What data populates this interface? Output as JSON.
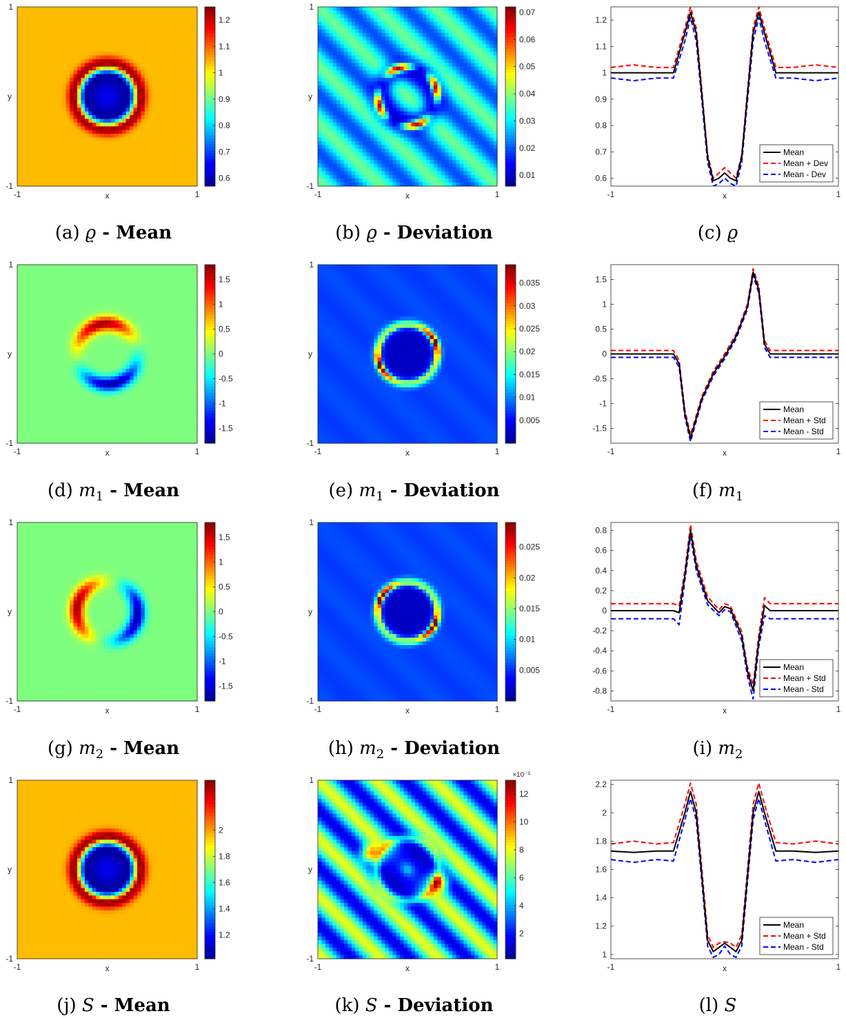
{
  "jet_colormap": [
    "#00008f",
    "#0000ff",
    "#007fff",
    "#00ffff",
    "#7fff7f",
    "#ffff00",
    "#ff7f00",
    "#ff0000",
    "#7f0000"
  ],
  "line_colors": {
    "mean": "#000000",
    "plus": "#ff0000",
    "minus": "#0000ff"
  },
  "chart_data": [
    {
      "id": "a",
      "type": "heatmap",
      "caption": {
        "prefix": "(a) ",
        "var": "ϱ",
        "sub": "",
        "suffix": " - Mean"
      },
      "pattern": "ring",
      "xlabel": "x",
      "ylabel": "y",
      "xlim": [
        -1,
        1
      ],
      "ylim": [
        -1,
        1
      ],
      "xticks": [
        "-1",
        "1"
      ],
      "yticks": [
        "-1",
        "1"
      ],
      "colorbar": {
        "min": 0.57,
        "max": 1.25,
        "ticks": [
          0.6,
          0.7,
          0.8,
          0.9,
          1,
          1.1,
          1.2
        ],
        "tick_labels": [
          "0.6",
          "0.7",
          "0.8",
          "0.9",
          "1",
          "1.1",
          "1.2"
        ],
        "exponent": ""
      }
    },
    {
      "id": "b",
      "type": "heatmap",
      "caption": {
        "prefix": "(b) ",
        "var": "ϱ",
        "sub": "",
        "suffix": " - Deviation"
      },
      "pattern": "stripes_ring",
      "xlabel": "x",
      "ylabel": "y",
      "xlim": [
        -1,
        1
      ],
      "ylim": [
        -1,
        1
      ],
      "xticks": [
        "-1",
        "1"
      ],
      "yticks": [
        "-1",
        "1"
      ],
      "colorbar": {
        "min": 0.006,
        "max": 0.072,
        "ticks": [
          0.01,
          0.02,
          0.03,
          0.04,
          0.05,
          0.06,
          0.07
        ],
        "tick_labels": [
          "0.01",
          "0.02",
          "0.03",
          "0.04",
          "0.05",
          "0.06",
          "0.07"
        ],
        "exponent": ""
      }
    },
    {
      "id": "c",
      "type": "line",
      "caption": {
        "prefix": "(c) ",
        "var": "ϱ",
        "sub": "",
        "suffix": ""
      },
      "xlabel": "x",
      "xlim": [
        -1,
        1
      ],
      "ylim": [
        0.57,
        1.25
      ],
      "xticks": [
        "-1",
        "1"
      ],
      "yticks": [
        0.6,
        0.7,
        0.8,
        0.9,
        1,
        1.1,
        1.2
      ],
      "ytick_labels": [
        "0.6",
        "0.7",
        "0.8",
        "0.9",
        "1",
        "1.1",
        "1.2"
      ],
      "legend_position": "bottom-right",
      "series": [
        {
          "name": "Mean",
          "x": [
            -1,
            -0.6,
            -0.45,
            -0.35,
            -0.3,
            -0.25,
            -0.15,
            -0.1,
            -0.05,
            0,
            0.05,
            0.1,
            0.15,
            0.25,
            0.3,
            0.35,
            0.45,
            0.6,
            1
          ],
          "y": [
            1,
            1,
            1,
            1.15,
            1.23,
            1.15,
            0.68,
            0.59,
            0.6,
            0.62,
            0.6,
            0.59,
            0.68,
            1.15,
            1.23,
            1.15,
            1,
            1,
            1
          ]
        },
        {
          "name": "Mean + Dev",
          "x": [
            -1,
            -0.8,
            -0.6,
            -0.45,
            -0.35,
            -0.3,
            -0.25,
            -0.15,
            -0.1,
            -0.05,
            0,
            0.05,
            0.1,
            0.15,
            0.25,
            0.3,
            0.35,
            0.45,
            0.6,
            0.8,
            1
          ],
          "y": [
            1.02,
            1.03,
            1.02,
            1.02,
            1.17,
            1.25,
            1.17,
            0.69,
            0.6,
            0.62,
            0.64,
            0.62,
            0.6,
            0.69,
            1.17,
            1.25,
            1.17,
            1.02,
            1.02,
            1.03,
            1.02
          ]
        },
        {
          "name": "Mean - Dev",
          "x": [
            -1,
            -0.8,
            -0.6,
            -0.45,
            -0.35,
            -0.3,
            -0.25,
            -0.15,
            -0.1,
            -0.05,
            0,
            0.05,
            0.1,
            0.15,
            0.25,
            0.3,
            0.35,
            0.45,
            0.6,
            0.8,
            1
          ],
          "y": [
            0.98,
            0.97,
            0.98,
            0.98,
            1.12,
            1.21,
            1.12,
            0.66,
            0.57,
            0.58,
            0.6,
            0.58,
            0.57,
            0.66,
            1.12,
            1.21,
            1.12,
            0.98,
            0.98,
            0.97,
            0.98
          ]
        }
      ]
    },
    {
      "id": "d",
      "type": "heatmap",
      "caption": {
        "prefix": "(d) ",
        "var": "m",
        "sub": "1",
        "suffix": " - Mean"
      },
      "pattern": "dipole_ns",
      "xlabel": "x",
      "ylabel": "y",
      "xlim": [
        -1,
        1
      ],
      "ylim": [
        -1,
        1
      ],
      "xticks": [
        "-1",
        "1"
      ],
      "yticks": [
        "-1",
        "1"
      ],
      "colorbar": {
        "min": -1.8,
        "max": 1.8,
        "ticks": [
          -1.5,
          -1,
          -0.5,
          0,
          0.5,
          1,
          1.5
        ],
        "tick_labels": [
          "-1.5",
          "-1",
          "-0.5",
          "0",
          "0.5",
          "1",
          "1.5"
        ],
        "exponent": ""
      }
    },
    {
      "id": "e",
      "type": "heatmap",
      "caption": {
        "prefix": "(e) ",
        "var": "m",
        "sub": "1",
        "suffix": " - Deviation"
      },
      "pattern": "ring_lobes_diag",
      "xlabel": "x",
      "ylabel": "y",
      "xlim": [
        -1,
        1
      ],
      "ylim": [
        -1,
        1
      ],
      "xticks": [
        "-1",
        "1"
      ],
      "yticks": [
        "-1",
        "1"
      ],
      "colorbar": {
        "min": 0,
        "max": 0.039,
        "ticks": [
          0.005,
          0.01,
          0.015,
          0.02,
          0.025,
          0.03,
          0.035
        ],
        "tick_labels": [
          "0.005",
          "0.01",
          "0.015",
          "0.02",
          "0.025",
          "0.03",
          "0.035"
        ],
        "exponent": ""
      }
    },
    {
      "id": "f",
      "type": "line",
      "caption": {
        "prefix": "(f) ",
        "var": "m",
        "sub": "1",
        "suffix": ""
      },
      "xlabel": "x",
      "xlim": [
        -1,
        1
      ],
      "ylim": [
        -1.8,
        1.8
      ],
      "xticks": [
        "-1",
        "1"
      ],
      "yticks": [
        -1.5,
        -1,
        -0.5,
        0,
        0.5,
        1,
        1.5
      ],
      "ytick_labels": [
        "-1.5",
        "-1",
        "-0.5",
        "0",
        "0.5",
        "1",
        "1.5"
      ],
      "legend_position": "bottom-right",
      "series": [
        {
          "name": "Mean",
          "x": [
            -1,
            -0.45,
            -0.4,
            -0.35,
            -0.3,
            -0.2,
            -0.1,
            0,
            0.1,
            0.2,
            0.25,
            0.3,
            0.35,
            0.4,
            0.45,
            1
          ],
          "y": [
            0,
            0,
            -0.2,
            -1.2,
            -1.7,
            -0.9,
            -0.4,
            -0.05,
            0.35,
            0.95,
            1.65,
            1.3,
            0.2,
            0,
            0,
            0
          ]
        },
        {
          "name": "Mean + Std",
          "x": [
            -1,
            -0.45,
            -0.4,
            -0.35,
            -0.3,
            -0.2,
            -0.1,
            0,
            0.1,
            0.2,
            0.25,
            0.3,
            0.35,
            0.4,
            0.45,
            1
          ],
          "y": [
            0.07,
            0.07,
            -0.13,
            -1.13,
            -1.63,
            -0.85,
            -0.35,
            0,
            0.4,
            1,
            1.72,
            1.37,
            0.27,
            0.07,
            0.07,
            0.07
          ]
        },
        {
          "name": "Mean - Std",
          "x": [
            -1,
            -0.45,
            -0.4,
            -0.35,
            -0.3,
            -0.2,
            -0.1,
            0,
            0.1,
            0.2,
            0.25,
            0.3,
            0.35,
            0.4,
            0.45,
            1
          ],
          "y": [
            -0.07,
            -0.07,
            -0.27,
            -1.27,
            -1.77,
            -0.95,
            -0.45,
            -0.1,
            0.3,
            0.9,
            1.58,
            1.23,
            0.13,
            -0.07,
            -0.07,
            -0.07
          ]
        }
      ]
    },
    {
      "id": "g",
      "type": "heatmap",
      "caption": {
        "prefix": "(g) ",
        "var": "m",
        "sub": "2",
        "suffix": " - Mean"
      },
      "pattern": "dipole_ew",
      "xlabel": "x",
      "ylabel": "y",
      "xlim": [
        -1,
        1
      ],
      "ylim": [
        -1,
        1
      ],
      "xticks": [
        "-1",
        "1"
      ],
      "yticks": [
        "-1",
        "1"
      ],
      "colorbar": {
        "min": -1.8,
        "max": 1.8,
        "ticks": [
          -1.5,
          -1,
          -0.5,
          0,
          0.5,
          1,
          1.5
        ],
        "tick_labels": [
          "-1.5",
          "-1",
          "-0.5",
          "0",
          "0.5",
          "1",
          "1.5"
        ],
        "exponent": ""
      }
    },
    {
      "id": "h",
      "type": "heatmap",
      "caption": {
        "prefix": "(h) ",
        "var": "m",
        "sub": "2",
        "suffix": " - Deviation"
      },
      "pattern": "ring_lobes_anti",
      "xlabel": "x",
      "ylabel": "y",
      "xlim": [
        -1,
        1
      ],
      "ylim": [
        -1,
        1
      ],
      "xticks": [
        "-1",
        "1"
      ],
      "yticks": [
        "-1",
        "1"
      ],
      "colorbar": {
        "min": 0,
        "max": 0.029,
        "ticks": [
          0.005,
          0.01,
          0.015,
          0.02,
          0.025
        ],
        "tick_labels": [
          "0.005",
          "0.01",
          "0.015",
          "0.02",
          "0.025"
        ],
        "exponent": ""
      }
    },
    {
      "id": "i",
      "type": "line",
      "caption": {
        "prefix": "(i) ",
        "var": "m",
        "sub": "2",
        "suffix": ""
      },
      "xlabel": "x",
      "xlim": [
        -1,
        1
      ],
      "ylim": [
        -0.9,
        0.88
      ],
      "xticks": [
        "-1",
        "1"
      ],
      "yticks": [
        -0.8,
        -0.6,
        -0.4,
        -0.2,
        0,
        0.2,
        0.4,
        0.6,
        0.8
      ],
      "ytick_labels": [
        "-0.8",
        "-0.6",
        "-0.4",
        "-0.2",
        "0",
        "0.2",
        "0.4",
        "0.6",
        "0.8"
      ],
      "legend_position": "bottom-right",
      "series": [
        {
          "name": "Mean",
          "x": [
            -1,
            -0.45,
            -0.4,
            -0.35,
            -0.3,
            -0.25,
            -0.15,
            -0.05,
            0,
            0.05,
            0.15,
            0.2,
            0.25,
            0.3,
            0.35,
            0.4,
            0.45,
            1
          ],
          "y": [
            0,
            0,
            -0.02,
            0.35,
            0.8,
            0.45,
            0.1,
            -0.02,
            0.04,
            0.02,
            -0.25,
            -0.6,
            -0.8,
            -0.3,
            0.05,
            0,
            0,
            0
          ]
        },
        {
          "name": "Mean + Std",
          "x": [
            -1,
            -0.45,
            -0.4,
            -0.35,
            -0.3,
            -0.25,
            -0.15,
            -0.05,
            0,
            0.05,
            0.15,
            0.2,
            0.25,
            0.3,
            0.35,
            0.4,
            0.45,
            1
          ],
          "y": [
            0.07,
            0.07,
            0.05,
            0.4,
            0.86,
            0.5,
            0.14,
            0.01,
            0.07,
            0.05,
            -0.21,
            -0.56,
            -0.74,
            -0.24,
            0.13,
            0.07,
            0.07,
            0.07
          ]
        },
        {
          "name": "Mean - Std",
          "x": [
            -1,
            -0.45,
            -0.4,
            -0.35,
            -0.3,
            -0.25,
            -0.15,
            -0.05,
            0,
            0.05,
            0.15,
            0.2,
            0.25,
            0.3,
            0.35,
            0.4,
            0.45,
            1
          ],
          "y": [
            -0.08,
            -0.08,
            -0.14,
            0.3,
            0.74,
            0.4,
            0.06,
            -0.05,
            0.01,
            -0.01,
            -0.3,
            -0.65,
            -0.88,
            -0.36,
            -0.05,
            -0.08,
            -0.08,
            -0.08
          ]
        }
      ]
    },
    {
      "id": "j",
      "type": "heatmap",
      "caption": {
        "prefix": "(j) ",
        "var": "S",
        "sub": "",
        "suffix": " - Mean"
      },
      "pattern": "ring",
      "xlabel": "x",
      "ylabel": "y",
      "xlim": [
        -1,
        1
      ],
      "ylim": [
        -1,
        1
      ],
      "xticks": [
        "-1",
        "1"
      ],
      "yticks": [
        "-1",
        "1"
      ],
      "colorbar": {
        "min": 1.02,
        "max": 2.38,
        "ticks": [
          1.2,
          1.4,
          1.6,
          1.8,
          2
        ],
        "tick_labels": [
          "1.2",
          "1.4",
          "1.6",
          "1.8",
          "2"
        ],
        "exponent": ""
      }
    },
    {
      "id": "k",
      "type": "heatmap",
      "caption": {
        "prefix": "(k) ",
        "var": "S",
        "sub": "",
        "suffix": " - Deviation"
      },
      "pattern": "strong_stripes_blobs",
      "xlabel": "x",
      "ylabel": "y",
      "xlim": [
        -1,
        1
      ],
      "ylim": [
        -1,
        1
      ],
      "xticks": [
        "-1",
        "1"
      ],
      "yticks": [
        "-1",
        "1"
      ],
      "colorbar": {
        "min": 0.2,
        "max": 13,
        "ticks": [
          2,
          4,
          6,
          8,
          10,
          12
        ],
        "tick_labels": [
          "2",
          "4",
          "6",
          "8",
          "10",
          "12"
        ],
        "exponent": "×10⁻³"
      }
    },
    {
      "id": "l",
      "type": "line",
      "caption": {
        "prefix": "(l) ",
        "var": "S",
        "sub": "",
        "suffix": ""
      },
      "xlabel": "x",
      "xlim": [
        -1,
        1
      ],
      "ylim": [
        0.97,
        2.23
      ],
      "xticks": [
        "-1",
        "1"
      ],
      "yticks": [
        1,
        1.2,
        1.4,
        1.6,
        1.8,
        2,
        2.2
      ],
      "ytick_labels": [
        "1",
        "1.2",
        "1.4",
        "1.6",
        "1.8",
        "2",
        "2.2"
      ],
      "legend_position": "bottom-right",
      "series": [
        {
          "name": "Mean",
          "x": [
            -1,
            -0.8,
            -0.6,
            -0.45,
            -0.35,
            -0.3,
            -0.25,
            -0.15,
            -0.1,
            -0.05,
            0,
            0.05,
            0.1,
            0.15,
            0.25,
            0.3,
            0.35,
            0.45,
            0.6,
            0.8,
            1
          ],
          "y": [
            1.73,
            1.72,
            1.73,
            1.73,
            2,
            2.15,
            2,
            1.1,
            1.02,
            1.05,
            1.08,
            1.05,
            1.02,
            1.1,
            2,
            2.15,
            2,
            1.73,
            1.73,
            1.72,
            1.73
          ]
        },
        {
          "name": "Mean + Std",
          "x": [
            -1,
            -0.8,
            -0.6,
            -0.45,
            -0.35,
            -0.3,
            -0.25,
            -0.15,
            -0.1,
            -0.05,
            0,
            0.05,
            0.1,
            0.15,
            0.25,
            0.3,
            0.35,
            0.45,
            0.6,
            0.8,
            1
          ],
          "y": [
            1.78,
            1.8,
            1.78,
            1.79,
            2.06,
            2.21,
            2.06,
            1.14,
            1.05,
            1.08,
            1.09,
            1.08,
            1.05,
            1.14,
            2.06,
            2.21,
            2.06,
            1.79,
            1.78,
            1.8,
            1.78
          ]
        },
        {
          "name": "Mean - Std",
          "x": [
            -1,
            -0.8,
            -0.6,
            -0.45,
            -0.35,
            -0.3,
            -0.25,
            -0.15,
            -0.1,
            -0.05,
            0,
            0.05,
            0.1,
            0.15,
            0.25,
            0.3,
            0.35,
            0.45,
            0.6,
            0.8,
            1
          ],
          "y": [
            1.67,
            1.65,
            1.67,
            1.66,
            1.95,
            2.1,
            1.95,
            1.06,
            0.98,
            1,
            1.06,
            1,
            0.98,
            1.06,
            1.95,
            2.1,
            1.95,
            1.66,
            1.67,
            1.65,
            1.67
          ]
        }
      ]
    }
  ]
}
